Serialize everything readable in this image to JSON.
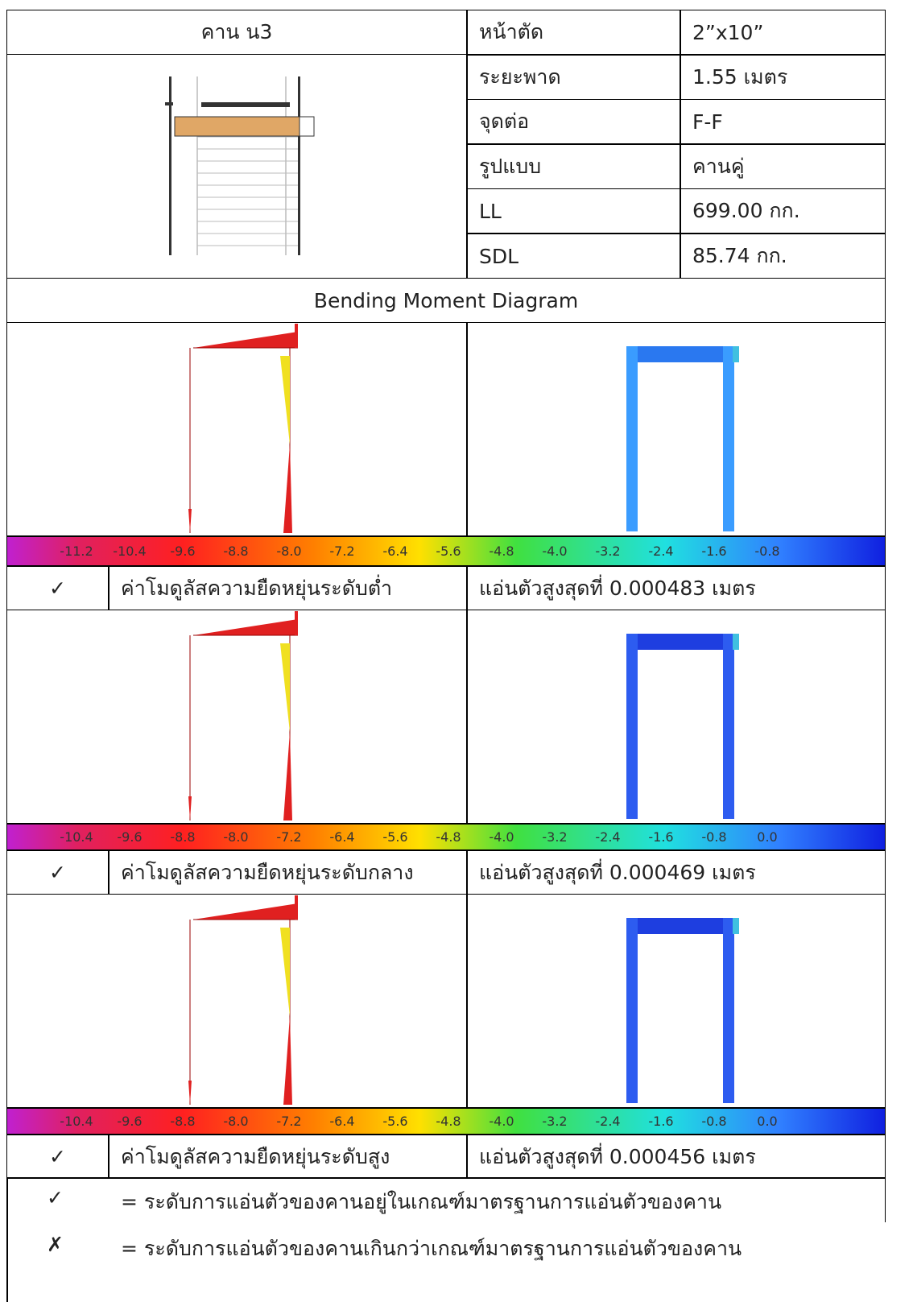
{
  "header": {
    "title": "คาน น3"
  },
  "properties": [
    {
      "label": "หน้าตัด",
      "value": "2”x10”"
    },
    {
      "label": "ระยะพาด",
      "value": "1.55 เมตร"
    },
    {
      "label": "จุดต่อ",
      "value": "F-F"
    },
    {
      "label": "รูปแบบ",
      "value": "คานคู่"
    },
    {
      "label": "LL",
      "value": "699.00 กก."
    },
    {
      "label": "SDL",
      "value": "85.74 กก."
    }
  ],
  "section_title": "Bending Moment Diagram",
  "cases": [
    {
      "scale_labels": [
        "-11.2",
        "-10.4",
        "-9.6",
        "-8.8",
        "-8.0",
        "-7.2",
        "-6.4",
        "-5.6",
        "-4.8",
        "-4.0",
        "-3.2",
        "-2.4",
        "-1.6",
        "-0.8"
      ],
      "status": "✓",
      "modulus": "ค่าโมดูลัสความยืดหยุ่นระดับต่ำ",
      "deflection": "แอ่นตัวสูงสุดที่ 0.000483 เมตร"
    },
    {
      "scale_labels": [
        "-10.4",
        "-9.6",
        "-8.8",
        "-8.0",
        "-7.2",
        "-6.4",
        "-5.6",
        "-4.8",
        "-4.0",
        "-3.2",
        "-2.4",
        "-1.6",
        "-0.8",
        "0.0"
      ],
      "status": "✓",
      "modulus": "ค่าโมดูลัสความยืดหยุ่นระดับกลาง",
      "deflection": "แอ่นตัวสูงสุดที่ 0.000469 เมตร"
    },
    {
      "scale_labels": [
        "-10.4",
        "-9.6",
        "-8.8",
        "-8.0",
        "-7.2",
        "-6.4",
        "-5.6",
        "-4.8",
        "-4.0",
        "-3.2",
        "-2.4",
        "-1.6",
        "-0.8",
        "0.0"
      ],
      "status": "✓",
      "modulus": "ค่าโมดูลัสความยืดหยุ่นระดับสูง",
      "deflection": "แอ่นตัวสูงสุดที่ 0.000456 เมตร"
    }
  ],
  "legend": [
    {
      "symbol": "✓",
      "text": "= ระดับการแอ่นตัวของคานอยู่ในเกณฑ์มาตรฐานการแอ่นตัวของคาน"
    },
    {
      "symbol": "✗",
      "text": "= ระดับการแอ่นตัวของคานเกินกว่าเกณฑ์มาตรฐานการแอ่นตัวของคาน"
    }
  ]
}
